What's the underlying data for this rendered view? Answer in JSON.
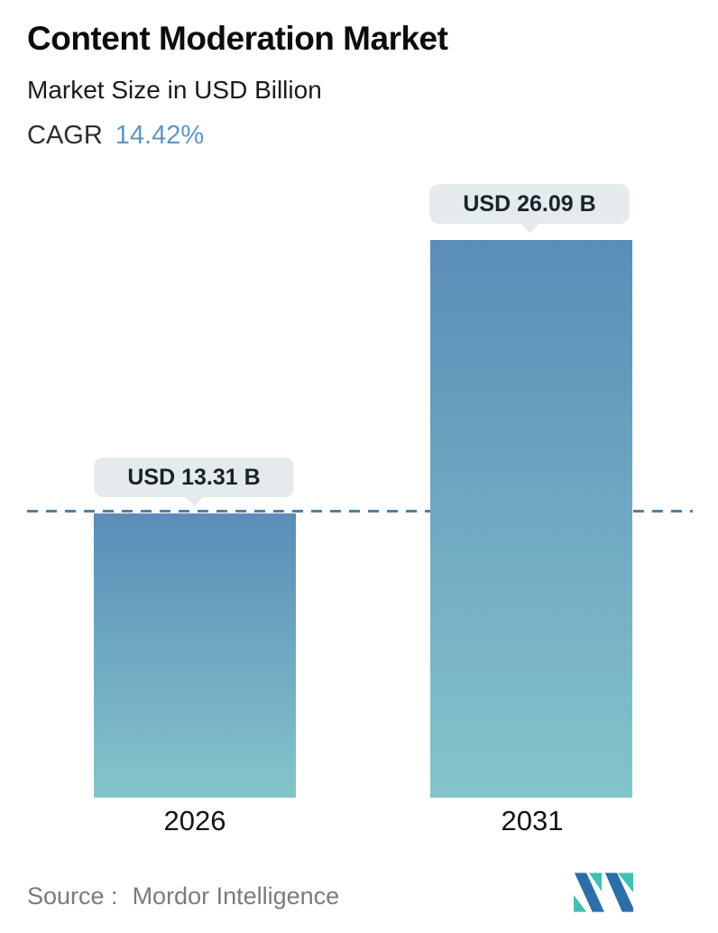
{
  "header": {
    "title": "Content Moderation Market",
    "subtitle": "Market Size in USD Billion",
    "cagr_label": "CAGR",
    "cagr_value": "14.42%"
  },
  "chart_data": {
    "type": "bar",
    "categories": [
      "2026",
      "2031"
    ],
    "values": [
      13.31,
      26.09
    ],
    "value_labels": [
      "USD 13.31 B",
      "USD 26.09 B"
    ],
    "title": "Content Moderation Market",
    "subtitle": "Market Size in USD Billion",
    "cagr": "14.42%",
    "unit": "USD Billion",
    "ylim": [
      0,
      26.09
    ],
    "reference_line_value": 13.31,
    "legend": "none",
    "grid": "off",
    "bar_gradient_top": "#5a8db8",
    "bar_gradient_bottom": "#83c5cb",
    "dashed_line_color": "#54809f",
    "tooltip_bg": "#e5eaed"
  },
  "footer": {
    "source_label": "Source :",
    "source_value": "Mordor Intelligence"
  },
  "colors": {
    "accent_blue": "#5e95c5",
    "logo_blue": "#2b6fa9",
    "logo_teal": "#43bfb4"
  }
}
